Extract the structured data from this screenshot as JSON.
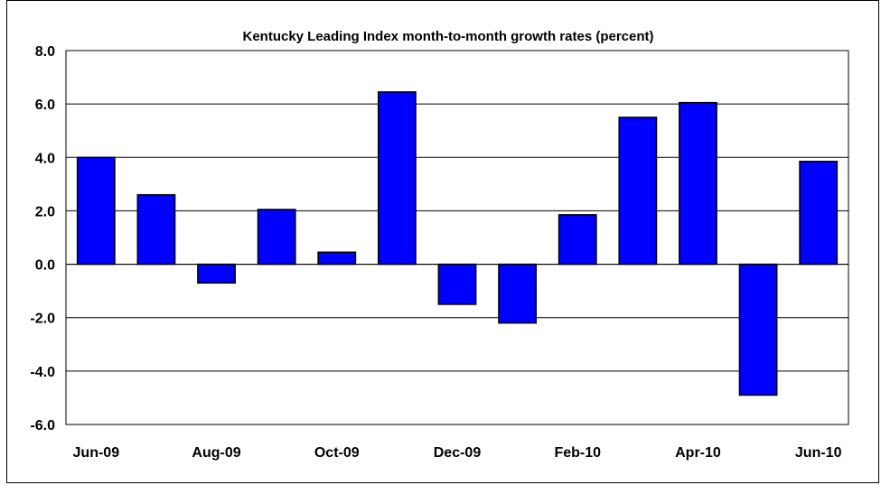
{
  "chart_data": {
    "type": "bar",
    "title": "Kentucky Leading Index month-to-month growth rates (percent)",
    "xlabel": "",
    "ylabel": "",
    "categories": [
      "Jun-09",
      "Jul-09",
      "Aug-09",
      "Sep-09",
      "Oct-09",
      "Nov-09",
      "Dec-09",
      "Jan-10",
      "Feb-10",
      "Mar-10",
      "Apr-10",
      "May-10",
      "Jun-10"
    ],
    "x_tick_labels": [
      "Jun-09",
      "",
      "Aug-09",
      "",
      "Oct-09",
      "",
      "Dec-09",
      "",
      "Feb-10",
      "",
      "Apr-10",
      "",
      "Jun-10"
    ],
    "values": [
      4.0,
      2.6,
      -0.7,
      2.05,
      0.45,
      6.45,
      -1.5,
      -2.2,
      1.85,
      5.5,
      6.05,
      -4.9,
      3.85
    ],
    "ylim": [
      -6.0,
      8.0
    ],
    "y_ticks": [
      "8.0",
      "6.0",
      "4.0",
      "2.0",
      "0.0",
      "-2.0",
      "-4.0",
      "-6.0"
    ],
    "y_tick_values": [
      8,
      6,
      4,
      2,
      0,
      -2,
      -4,
      -6
    ],
    "grid": true,
    "bar_color": "#0000FF",
    "bar_edge_color": "#000000"
  }
}
